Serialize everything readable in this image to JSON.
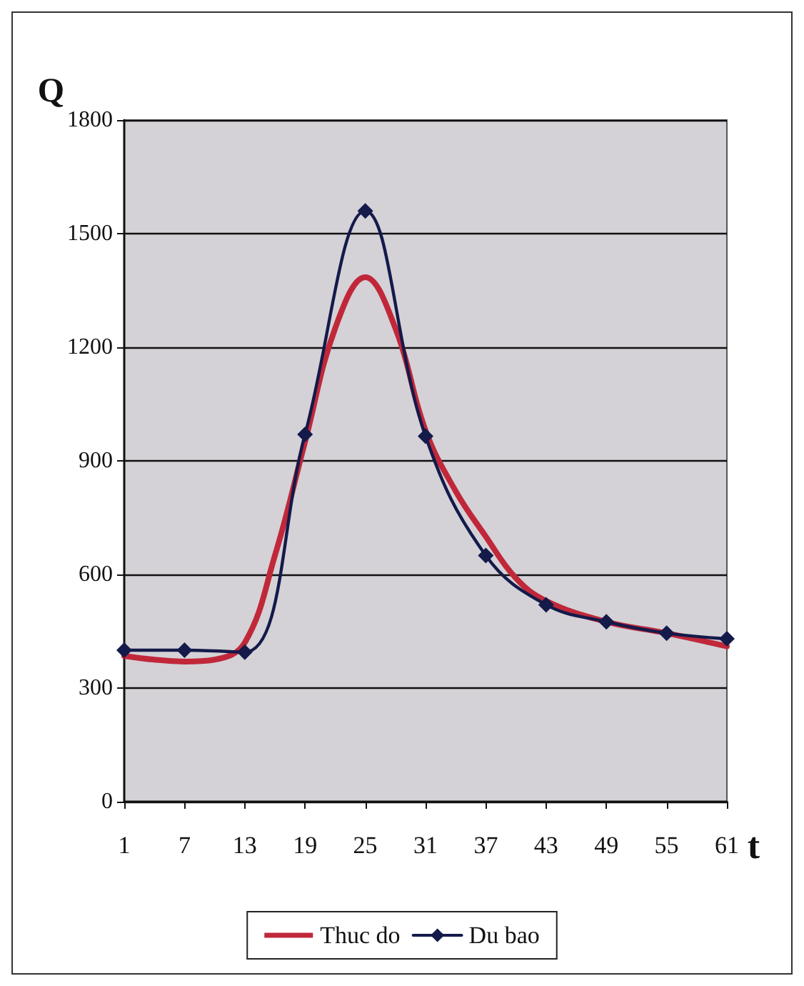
{
  "chart_data": {
    "type": "line",
    "xlabel": "t",
    "ylabel": "Q",
    "xlim": [
      1,
      61
    ],
    "xticks": [
      1,
      7,
      13,
      19,
      25,
      31,
      37,
      43,
      49,
      55,
      61
    ],
    "ylim": [
      0,
      1800
    ],
    "yticks": [
      0,
      300,
      600,
      900,
      1200,
      1500,
      1800
    ],
    "grid": "y",
    "legend": "bottom",
    "line_style": "solid",
    "series": [
      {
        "name": "Thuc do",
        "color": "#c0283a",
        "marker": "none",
        "x": [
          1,
          4,
          7,
          10,
          13,
          16,
          19,
          22,
          25,
          28,
          31,
          34,
          37,
          40,
          43,
          49,
          55,
          61
        ],
        "values": [
          385,
          375,
          370,
          375,
          420,
          650,
          950,
          1250,
          1385,
          1250,
          980,
          820,
          700,
          590,
          530,
          475,
          445,
          410
        ]
      },
      {
        "name": "Du bao",
        "color": "#141a4a",
        "marker": "diamond",
        "x": [
          1,
          7,
          13,
          19,
          25,
          31,
          37,
          43,
          49,
          55,
          61
        ],
        "values": [
          400,
          400,
          395,
          970,
          1560,
          965,
          650,
          520,
          475,
          445,
          430
        ]
      }
    ]
  }
}
